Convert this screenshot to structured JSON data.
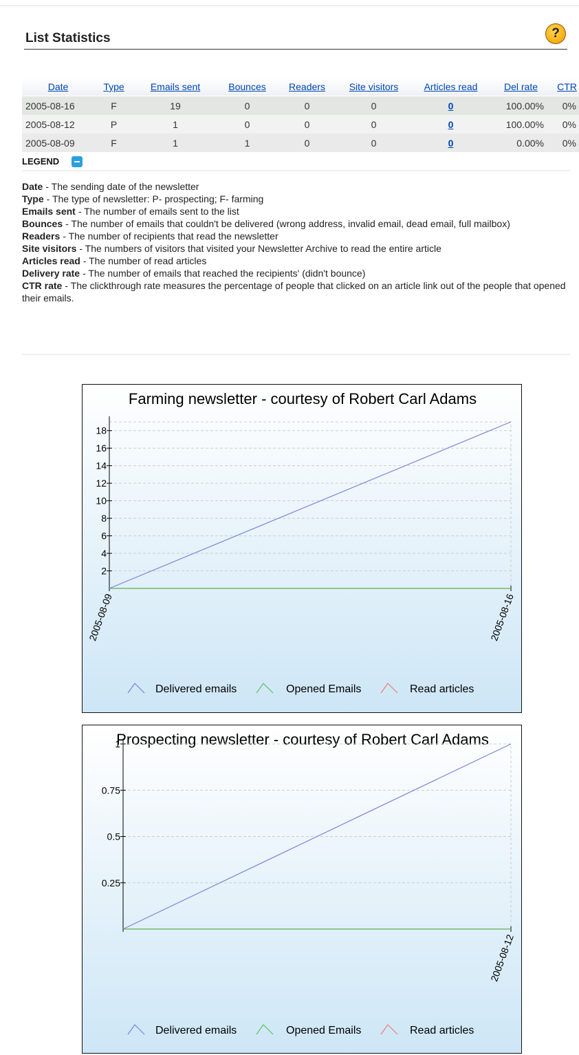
{
  "header": {
    "title": "List Statistics",
    "help": "?"
  },
  "table": {
    "columns": [
      "Date",
      "Type",
      "Emails sent",
      "Bounces",
      "Readers",
      "Site visitors",
      "Articles read",
      "Del rate",
      "CTR"
    ],
    "rows": [
      [
        "2005-08-16",
        "F",
        "19",
        "0",
        "0",
        "0",
        "0",
        "100.00%",
        "0%"
      ],
      [
        "2005-08-12",
        "P",
        "1",
        "0",
        "0",
        "0",
        "0",
        "100.00%",
        "0%"
      ],
      [
        "2005-08-09",
        "F",
        "1",
        "1",
        "0",
        "0",
        "0",
        "0.00%",
        "0%"
      ]
    ]
  },
  "legend": {
    "title": "LEGEND",
    "items": [
      {
        "term": "Date",
        "description": "- The sending date of the newsletter"
      },
      {
        "term": "Type",
        "description": "- The type of newsletter: P- prospecting; F- farming"
      },
      {
        "term": "Emails sent",
        "description": "- The number of emails sent to the list"
      },
      {
        "term": "Bounces",
        "description": "- The number of emails that couldn't be delivered (wrong address, invalid email, dead email, full mailbox)"
      },
      {
        "term": "Readers",
        "description": "- The number of recipients that read the newsletter"
      },
      {
        "term": "Site visitors",
        "description": "- The numbers of visitors that visited your Newsletter Archive to read the entire article"
      },
      {
        "term": "Articles read",
        "description": "- The number of read articles"
      },
      {
        "term": "Delivery rate",
        "description": "- The number of emails that reached the recipients' (didn't bounce)"
      },
      {
        "term": "CTR rate",
        "description": "- The clickthrough rate measures the percentage of people that clicked on an article link out of the people that opened their emails."
      }
    ]
  },
  "chart_data": [
    {
      "type": "line",
      "title": "Farming newsletter - courtesy of Robert Carl Adams",
      "x": [
        "2005-08-09",
        "2005-08-16"
      ],
      "series": [
        {
          "name": "Delivered emails",
          "color": "#7b80d8",
          "values": [
            0,
            19
          ]
        },
        {
          "name": "Opened Emails",
          "color": "#5cbf5c",
          "values": [
            0,
            0
          ]
        },
        {
          "name": "Read articles",
          "color": "#f07a7a",
          "values": [
            0,
            0
          ]
        }
      ],
      "ylim": [
        0,
        19
      ],
      "yticks": [
        2,
        4,
        6,
        8,
        10,
        12,
        14,
        16,
        18
      ],
      "grid": true
    },
    {
      "type": "line",
      "title": "Prospecting newsletter - courtesy of Robert Carl Adams",
      "x": [
        null,
        "2005-08-12"
      ],
      "series": [
        {
          "name": "Delivered emails",
          "color": "#7b80d8",
          "values": [
            0,
            1
          ]
        },
        {
          "name": "Opened Emails",
          "color": "#5cbf5c",
          "values": [
            0,
            0
          ]
        },
        {
          "name": "Read articles",
          "color": "#f07a7a",
          "values": [
            0,
            0
          ]
        }
      ],
      "ylim": [
        0,
        1
      ],
      "yticks": [
        0.25,
        0.5,
        0.75,
        1
      ],
      "grid": true
    }
  ]
}
